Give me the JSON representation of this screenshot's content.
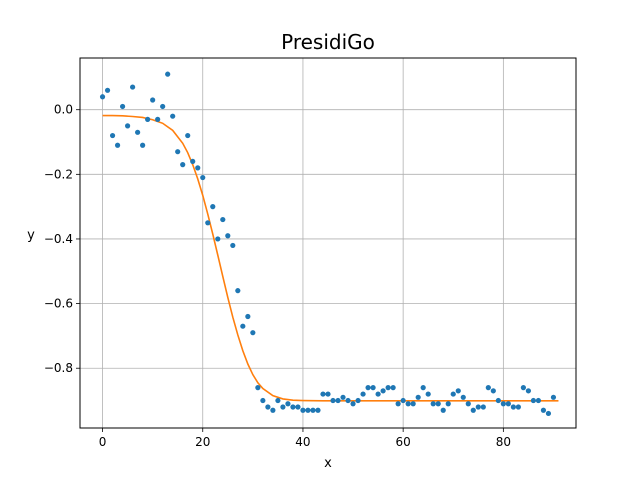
{
  "chart_data": {
    "type": "scatter",
    "title": "PresidiGo",
    "xlabel": "x",
    "ylabel": "y",
    "xlim": [
      -4.5,
      94.5
    ],
    "ylim": [
      -0.985,
      0.16
    ],
    "grid": true,
    "xticks": [
      0,
      20,
      40,
      60,
      80
    ],
    "xtick_labels": [
      "0",
      "20",
      "40",
      "60",
      "80"
    ],
    "yticks": [
      0.0,
      -0.2,
      -0.4,
      -0.6,
      -0.8
    ],
    "ytick_labels": [
      "0.0",
      "−0.2",
      "−0.4",
      "−0.6",
      "−0.8"
    ],
    "colors": {
      "points": "#1f77b4",
      "fit": "#ff7f0e",
      "grid": "#b0b0b0"
    },
    "series": [
      {
        "kind": "scatter",
        "x": [
          0,
          1,
          2,
          3,
          4,
          5,
          6,
          7,
          8,
          9,
          10,
          11,
          12,
          13,
          14,
          15,
          16,
          17,
          18,
          19,
          20,
          21,
          22,
          23,
          24,
          25,
          26,
          27,
          28,
          29,
          30,
          31,
          32,
          33,
          34,
          35,
          36,
          37,
          38,
          39,
          40,
          41,
          42,
          43,
          44,
          45,
          46,
          47,
          48,
          49,
          50,
          51,
          52,
          53,
          54,
          55,
          56,
          57,
          58,
          59,
          60,
          61,
          62,
          63,
          64,
          65,
          66,
          67,
          68,
          69,
          70,
          71,
          72,
          73,
          74,
          75,
          76,
          77,
          78,
          79,
          80,
          81,
          82,
          83,
          84,
          85,
          86,
          87,
          88,
          89,
          90
        ],
        "y": [
          0.04,
          0.06,
          -0.08,
          -0.11,
          0.01,
          -0.05,
          0.07,
          -0.07,
          -0.11,
          -0.03,
          0.03,
          -0.03,
          0.01,
          0.11,
          -0.02,
          -0.13,
          -0.17,
          -0.08,
          -0.16,
          -0.18,
          -0.21,
          -0.35,
          -0.3,
          -0.4,
          -0.34,
          -0.39,
          -0.42,
          -0.56,
          -0.67,
          -0.64,
          -0.69,
          -0.86,
          -0.9,
          -0.92,
          -0.93,
          -0.9,
          -0.92,
          -0.91,
          -0.92,
          -0.92,
          -0.93,
          -0.93,
          -0.93,
          -0.93,
          -0.88,
          -0.88,
          -0.9,
          -0.9,
          -0.89,
          -0.9,
          -0.91,
          -0.9,
          -0.88,
          -0.86,
          -0.86,
          -0.88,
          -0.87,
          -0.86,
          -0.86,
          -0.91,
          -0.9,
          -0.91,
          -0.91,
          -0.89,
          -0.86,
          -0.88,
          -0.91,
          -0.91,
          -0.93,
          -0.91,
          -0.88,
          -0.87,
          -0.89,
          -0.91,
          -0.93,
          -0.92,
          -0.92,
          -0.86,
          -0.87,
          -0.9,
          -0.91,
          -0.91,
          -0.92,
          -0.92,
          -0.86,
          -0.87,
          -0.9,
          -0.9,
          -0.93,
          -0.94,
          -0.89
        ]
      },
      {
        "kind": "line",
        "x": [
          0,
          2,
          4,
          6,
          8,
          10,
          12,
          14,
          16,
          17,
          18,
          19,
          20,
          21,
          22,
          23,
          24,
          25,
          26,
          27,
          28,
          29,
          30,
          31,
          32,
          34,
          36,
          38,
          40,
          44,
          50,
          60,
          70,
          80,
          91
        ],
        "y": [
          -0.018,
          -0.018,
          -0.019,
          -0.021,
          -0.024,
          -0.031,
          -0.042,
          -0.064,
          -0.104,
          -0.133,
          -0.17,
          -0.214,
          -0.265,
          -0.323,
          -0.385,
          -0.45,
          -0.516,
          -0.581,
          -0.642,
          -0.697,
          -0.746,
          -0.787,
          -0.82,
          -0.845,
          -0.863,
          -0.885,
          -0.895,
          -0.899,
          -0.9,
          -0.901,
          -0.901,
          -0.901,
          -0.901,
          -0.901,
          -0.901
        ]
      }
    ]
  }
}
